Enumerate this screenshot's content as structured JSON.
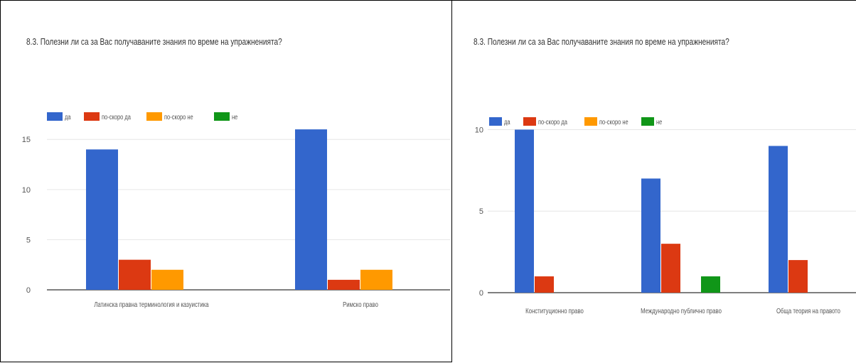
{
  "colors": {
    "da": "#3366cc",
    "poskoro_da": "#dc3912",
    "poskoro_ne": "#ff9900",
    "ne": "#109618",
    "grid": "#e6e6e6",
    "axis": "#333333"
  },
  "chart_data": [
    {
      "type": "bar",
      "title": "8.3. Полезни ли са за Вас получаваните знания по време на упражненията?",
      "categories": [
        "Латинска правна терминология и казуистика",
        "Римско право"
      ],
      "series": [
        {
          "name": "да",
          "values": [
            14,
            16
          ]
        },
        {
          "name": "по-скоро да",
          "values": [
            3,
            1
          ]
        },
        {
          "name": "по-скоро не",
          "values": [
            2,
            2
          ]
        },
        {
          "name": "не",
          "values": [
            0,
            0
          ]
        }
      ],
      "yticks": [
        "0",
        "5",
        "10",
        "15"
      ],
      "ylim": [
        0,
        17
      ],
      "legend": "top",
      "grid": true
    },
    {
      "type": "bar",
      "title": "8.3. Полезни ли са за Вас получаваните знания по време на упражненията?",
      "categories": [
        "Конституционно право",
        "Международно публично право",
        "Обща теория на правото"
      ],
      "series": [
        {
          "name": "да",
          "values": [
            10,
            7,
            9
          ]
        },
        {
          "name": "по-скоро да",
          "values": [
            1,
            3,
            2
          ]
        },
        {
          "name": "по-скоро не",
          "values": [
            0,
            0,
            0
          ]
        },
        {
          "name": "не",
          "values": [
            0,
            1,
            0
          ]
        }
      ],
      "yticks": [
        "0",
        "5",
        "10"
      ],
      "ylim": [
        0,
        10.5
      ],
      "legend": "top",
      "grid": true
    }
  ]
}
